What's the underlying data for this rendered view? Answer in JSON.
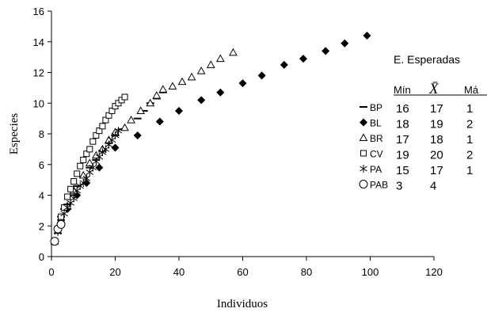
{
  "chart_data": {
    "type": "scatter",
    "xlabel": "Individuos",
    "ylabel": "Especies",
    "xlim": [
      0,
      120
    ],
    "ylim": [
      0,
      16
    ],
    "xticks": [
      "0",
      "20",
      "40",
      "60",
      "80",
      "100",
      "120"
    ],
    "yticks": [
      "0",
      "2",
      "4",
      "6",
      "8",
      "10",
      "12",
      "14",
      "16"
    ],
    "grid": false,
    "series": [
      {
        "name": "BP",
        "marker": "dash",
        "color": "#000000",
        "x": [
          1,
          2,
          3,
          4,
          5,
          6,
          8,
          10,
          12,
          14,
          16,
          18,
          20,
          22,
          27,
          29,
          31,
          33,
          35
        ],
        "y": [
          1,
          1.9,
          2.6,
          3.1,
          3.4,
          4.0,
          4.6,
          5.2,
          5.8,
          6.3,
          6.9,
          7.4,
          7.9,
          8.3,
          9.0,
          9.5,
          10.0,
          10.3,
          10.7
        ]
      },
      {
        "name": "BL",
        "marker": "diamond",
        "color": "#000000",
        "x": [
          1,
          2,
          3,
          5,
          8,
          11,
          15,
          20,
          27,
          34,
          40,
          47,
          53,
          60,
          66,
          73,
          79,
          86,
          92,
          99
        ],
        "y": [
          1,
          1.7,
          2.4,
          3.1,
          4.0,
          4.8,
          5.8,
          7.1,
          7.9,
          8.8,
          9.5,
          10.2,
          10.7,
          11.3,
          11.8,
          12.5,
          12.9,
          13.4,
          13.9,
          14.4
        ]
      },
      {
        "name": "BR",
        "marker": "triangle",
        "color": "#000000",
        "x": [
          1,
          2,
          3,
          5,
          7,
          10,
          12,
          14,
          16,
          18,
          20,
          23,
          25,
          28,
          31,
          33,
          35,
          38,
          41,
          44,
          47,
          50,
          53,
          57
        ],
        "y": [
          1,
          1.7,
          2.4,
          3.3,
          4.3,
          5.3,
          6.1,
          6.6,
          7.0,
          7.6,
          8.1,
          8.4,
          8.9,
          9.5,
          10.0,
          10.5,
          10.9,
          11.1,
          11.4,
          11.7,
          12.1,
          12.5,
          12.9,
          13.3
        ]
      },
      {
        "name": "CV",
        "marker": "square",
        "color": "#000000",
        "x": [
          1,
          2,
          3,
          4,
          5,
          6,
          7,
          8,
          9,
          10,
          11,
          12,
          13,
          14,
          15,
          16,
          17,
          18,
          19,
          20,
          21,
          22,
          23
        ],
        "y": [
          1,
          1.8,
          2.6,
          3.2,
          3.9,
          4.4,
          4.9,
          5.4,
          5.9,
          6.3,
          6.7,
          7.0,
          7.5,
          7.9,
          8.2,
          8.5,
          8.9,
          9.2,
          9.5,
          9.8,
          10.0,
          10.2,
          10.4
        ]
      },
      {
        "name": "PA",
        "marker": "asterisk",
        "color": "#000000",
        "x": [
          1,
          2,
          3,
          4,
          5,
          6,
          7,
          8,
          9,
          10,
          11,
          12,
          13,
          14,
          15,
          16,
          17,
          18,
          19,
          20,
          21
        ],
        "y": [
          1,
          1.6,
          2.2,
          2.8,
          3.2,
          3.5,
          3.8,
          4.3,
          4.6,
          4.8,
          5.1,
          5.5,
          5.8,
          6.2,
          6.5,
          6.8,
          7.0,
          7.3,
          7.6,
          7.9,
          8.2
        ]
      },
      {
        "name": "PAB",
        "marker": "circle",
        "color": "#000000",
        "x": [
          1,
          2,
          3
        ],
        "y": [
          1,
          1.8,
          2.1
        ]
      }
    ],
    "legend": {
      "placement": "right",
      "items": [
        {
          "label": "BP",
          "marker": "dash"
        },
        {
          "label": "BL",
          "marker": "diamond"
        },
        {
          "label": "BR",
          "marker": "triangle"
        },
        {
          "label": "CV",
          "marker": "square"
        },
        {
          "label": "PA",
          "marker": "asterisk"
        },
        {
          "label": "PAB",
          "marker": "circle"
        }
      ]
    },
    "table": {
      "title": "E. Esperadas",
      "headers": [
        "Mín",
        "X̄",
        "Má"
      ],
      "rows": [
        [
          "16",
          "17",
          "1"
        ],
        [
          "18",
          "19",
          "2"
        ],
        [
          "17",
          "18",
          "1"
        ],
        [
          "19",
          "20",
          "2"
        ],
        [
          "15",
          "17",
          "1"
        ],
        [
          "3",
          "4",
          ""
        ]
      ]
    }
  }
}
